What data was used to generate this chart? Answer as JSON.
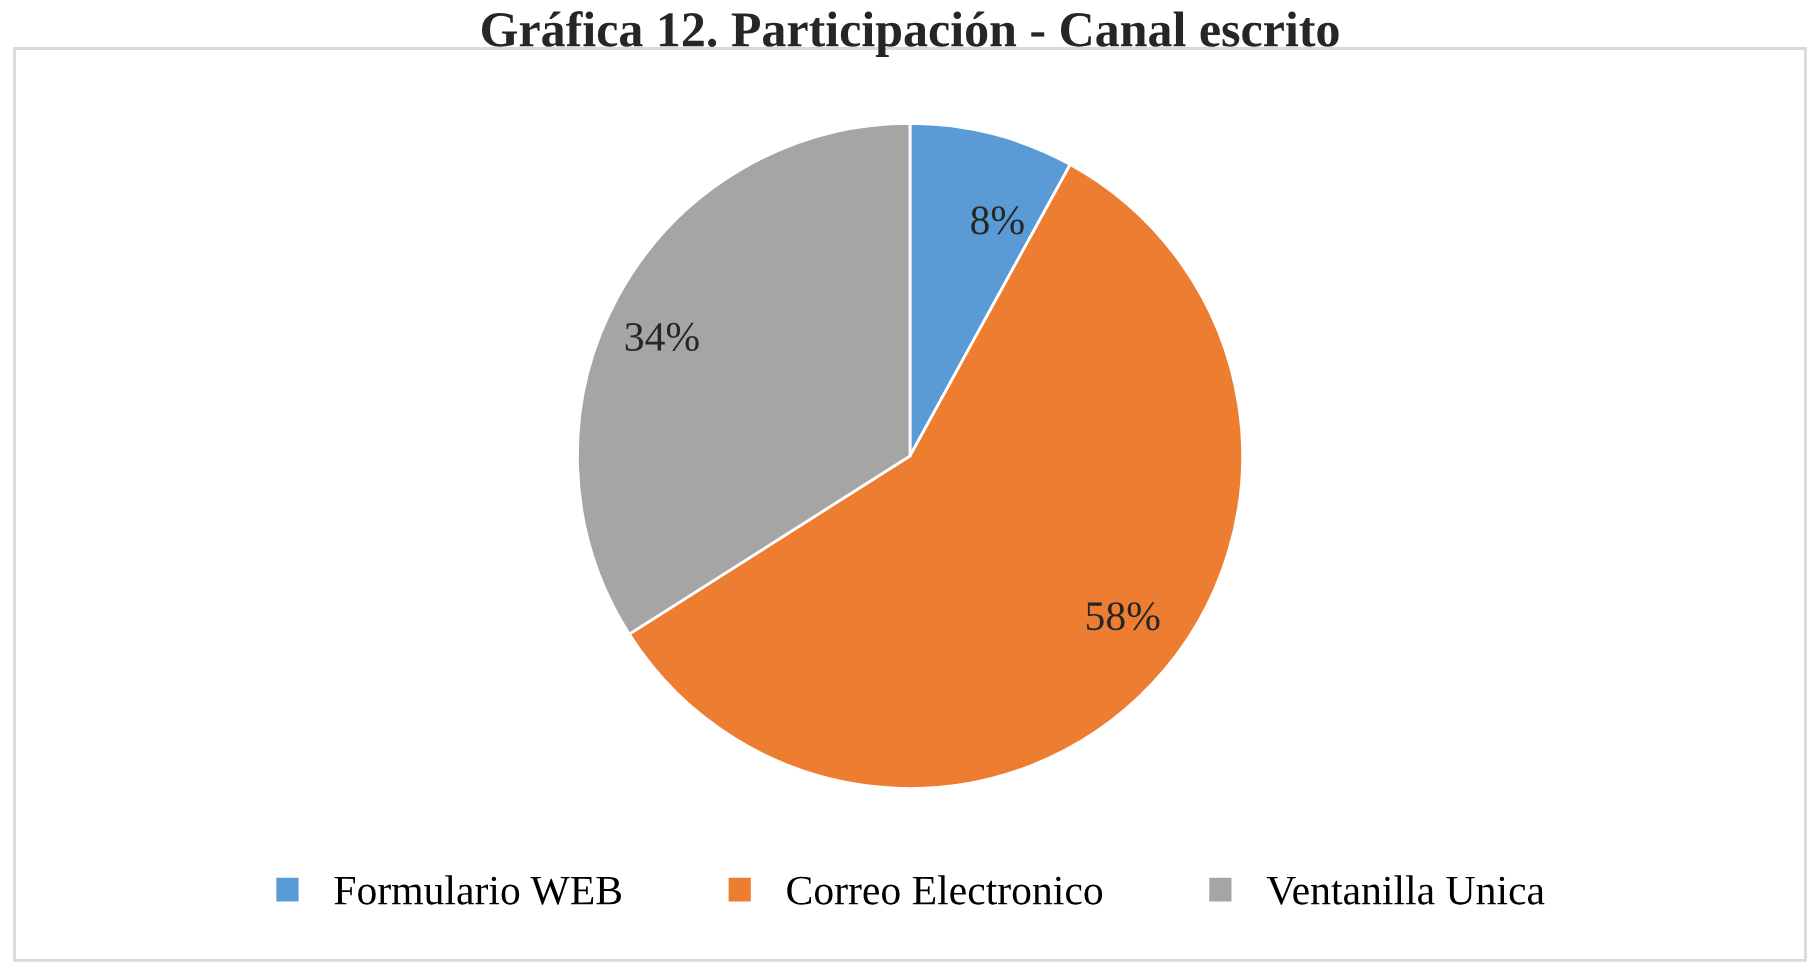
{
  "chart_data": {
    "type": "pie",
    "title": "Gráfica 12. Participación - Canal escrito",
    "categories": [
      "Formulario WEB",
      "Correo Electronico",
      "Ventanilla Unica"
    ],
    "values": [
      8,
      58,
      34
    ],
    "colors": [
      "#5b9bd5",
      "#ed7d31",
      "#a5a5a5"
    ],
    "value_labels": [
      "8%",
      "58%",
      "34%"
    ],
    "legend": "bottom"
  }
}
